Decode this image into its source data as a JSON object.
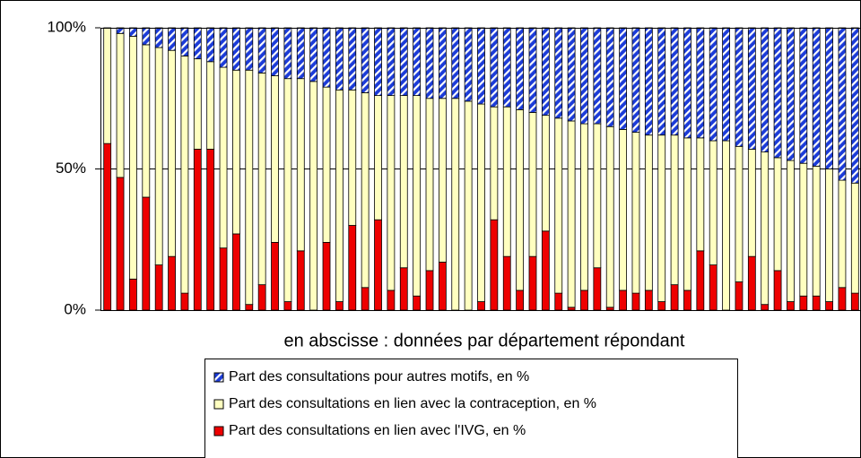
{
  "chart_data": {
    "type": "stacked_bar",
    "xlabel": "en abscisse : données par département répondant",
    "ylim": [
      0,
      100
    ],
    "yticks": [
      {
        "value": 0,
        "label": "0%"
      },
      {
        "value": 50,
        "label": "50%"
      },
      {
        "value": 100,
        "label": "100%"
      }
    ],
    "grid": true,
    "series": [
      {
        "name": "Part des consultations en lien avec l'IVG, en %",
        "color": "#ee0000",
        "values": [
          59,
          47,
          11,
          40,
          16,
          19,
          6,
          57,
          57,
          22,
          27,
          2,
          9,
          24,
          3,
          21,
          0,
          24,
          3,
          30,
          8,
          32,
          7,
          15,
          5,
          14,
          17,
          0,
          0,
          3,
          32,
          19,
          7,
          19,
          28,
          6,
          1,
          7,
          15,
          1,
          7,
          6,
          7,
          3,
          9,
          7,
          21,
          16,
          0,
          10,
          19,
          2,
          14,
          3,
          5,
          5,
          3,
          8,
          6
        ]
      },
      {
        "name": "Part des consultations en lien avec la contraception, en %",
        "color": "#ffffc0",
        "values": [
          41,
          51,
          86,
          54,
          77,
          73,
          84,
          32,
          31,
          64,
          58,
          83,
          75,
          59,
          79,
          61,
          81,
          55,
          75,
          48,
          69,
          44,
          69,
          61,
          71,
          61,
          58,
          75,
          74,
          70,
          40,
          53,
          64,
          51,
          41,
          62,
          66,
          59,
          51,
          64,
          57,
          57,
          55,
          59,
          53,
          54,
          40,
          44,
          60,
          48,
          38,
          54,
          40,
          50,
          47,
          46,
          47,
          38,
          39
        ]
      },
      {
        "name": "Part des consultations pour autres motifs, en %",
        "color": "#1c3cd8",
        "values": [
          0,
          2,
          3,
          6,
          7,
          8,
          10,
          11,
          12,
          14,
          15,
          15,
          16,
          17,
          18,
          18,
          19,
          21,
          22,
          22,
          23,
          24,
          24,
          24,
          24,
          25,
          25,
          25,
          26,
          27,
          28,
          28,
          29,
          30,
          31,
          32,
          33,
          34,
          34,
          35,
          36,
          37,
          38,
          38,
          38,
          39,
          39,
          40,
          40,
          42,
          43,
          44,
          46,
          47,
          48,
          49,
          50,
          54,
          55
        ]
      }
    ]
  }
}
